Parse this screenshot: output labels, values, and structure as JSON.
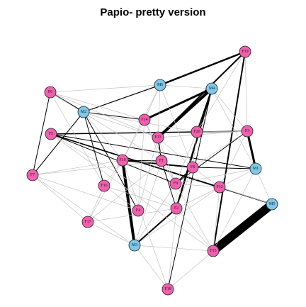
{
  "title": "Papio- pretty version",
  "colors": {
    "female": "#f25fae",
    "male": "#7ec8ea",
    "edge_strong": "#000000",
    "edge_weak": "#c4c4c4",
    "stroke": "#222222"
  },
  "nodes": [
    {
      "id": "F1",
      "label": "F1",
      "sex": "female"
    },
    {
      "id": "F2",
      "label": "F2",
      "sex": "female"
    },
    {
      "id": "F3",
      "label": "F3",
      "sex": "female"
    },
    {
      "id": "F4",
      "label": "F4",
      "sex": "female"
    },
    {
      "id": "F5",
      "label": "F5",
      "sex": "female"
    },
    {
      "id": "F6",
      "label": "F6",
      "sex": "female"
    },
    {
      "id": "F7",
      "label": "F7",
      "sex": "female"
    },
    {
      "id": "F8",
      "label": "F8",
      "sex": "female"
    },
    {
      "id": "F9",
      "label": "F9",
      "sex": "female"
    },
    {
      "id": "F10",
      "label": "F10",
      "sex": "female"
    },
    {
      "id": "F11",
      "label": "F11",
      "sex": "female"
    },
    {
      "id": "F12",
      "label": "F12",
      "sex": "female"
    },
    {
      "id": "F13",
      "label": "F13",
      "sex": "female"
    },
    {
      "id": "F14",
      "label": "F14",
      "sex": "female"
    },
    {
      "id": "F15",
      "label": "F15",
      "sex": "female"
    },
    {
      "id": "F16",
      "label": "F16",
      "sex": "female"
    },
    {
      "id": "F17",
      "label": "F17",
      "sex": "female"
    },
    {
      "id": "F18",
      "label": "F18",
      "sex": "female"
    },
    {
      "id": "F19",
      "label": "F19",
      "sex": "female"
    },
    {
      "id": "F20",
      "label": "F20",
      "sex": "female"
    },
    {
      "id": "M1",
      "label": "M1",
      "sex": "male"
    },
    {
      "id": "M2",
      "label": "M2",
      "sex": "male"
    },
    {
      "id": "M3",
      "label": "M3",
      "sex": "male"
    },
    {
      "id": "M4",
      "label": "M4",
      "sex": "male"
    },
    {
      "id": "M5",
      "label": "M5",
      "sex": "male"
    },
    {
      "id": "M6",
      "label": "M6",
      "sex": "male"
    }
  ],
  "edges": [
    {
      "s": "F15",
      "t": "M5",
      "w": 12
    },
    {
      "s": "M4",
      "t": "F11",
      "w": 6
    },
    {
      "s": "M4",
      "t": "F13",
      "w": 4
    },
    {
      "s": "M4",
      "t": "F14",
      "w": 3
    },
    {
      "s": "M4",
      "t": "F2",
      "w": 2.5
    },
    {
      "s": "M4",
      "t": "F20",
      "w": 1.5
    },
    {
      "s": "M4",
      "t": "F18",
      "w": 1
    },
    {
      "s": "M6",
      "t": "F19",
      "w": 2.5
    },
    {
      "s": "M6",
      "t": "M2",
      "w": 1.2
    },
    {
      "s": "F19",
      "t": "F13",
      "w": 2
    },
    {
      "s": "F19",
      "t": "F15",
      "w": 2
    },
    {
      "s": "F10",
      "t": "M3",
      "w": 4
    },
    {
      "s": "F11",
      "t": "M3",
      "w": 4
    },
    {
      "s": "F14",
      "t": "F11",
      "w": 2
    },
    {
      "s": "F13",
      "t": "F11",
      "w": 3
    },
    {
      "s": "F13",
      "t": "F1",
      "w": 1.5
    },
    {
      "s": "F10",
      "t": "F11",
      "w": 1.5
    },
    {
      "s": "F10",
      "t": "F8",
      "w": 2
    },
    {
      "s": "F11",
      "t": "F8",
      "w": 1.5
    },
    {
      "s": "F11",
      "t": "F9",
      "w": 1.5
    },
    {
      "s": "F8",
      "t": "F9",
      "w": 1.5
    },
    {
      "s": "F2",
      "t": "M3",
      "w": 2
    },
    {
      "s": "F11",
      "t": "F12",
      "w": 2
    },
    {
      "s": "F12",
      "t": "F5",
      "w": 1.5
    },
    {
      "s": "F5",
      "t": "F3",
      "w": 1.5
    },
    {
      "s": "F3",
      "t": "M1",
      "w": 3
    },
    {
      "s": "F5",
      "t": "M5",
      "w": 1.5
    },
    {
      "s": "M2",
      "t": "F6",
      "w": 1.5
    },
    {
      "s": "M2",
      "t": "F4",
      "w": 1
    },
    {
      "s": "M2",
      "t": "F7",
      "w": 1
    },
    {
      "s": "M2",
      "t": "F14",
      "w": 1
    },
    {
      "s": "M2",
      "t": "F16",
      "w": 1
    },
    {
      "s": "F6",
      "t": "F7",
      "w": 1
    },
    {
      "s": "F6",
      "t": "F16",
      "w": 0.8
    },
    {
      "s": "F4",
      "t": "F16",
      "w": 0.8
    },
    {
      "s": "F10",
      "t": "F1",
      "w": 1
    },
    {
      "s": "F8",
      "t": "M1",
      "w": 1
    },
    {
      "s": "F9",
      "t": "F3",
      "w": 1
    },
    {
      "s": "F9",
      "t": "F5",
      "w": 1
    },
    {
      "s": "M1",
      "t": "F5",
      "w": 1
    },
    {
      "s": "F1",
      "t": "F2",
      "w": 1
    },
    {
      "s": "F6",
      "t": "M6",
      "w": 0.5
    },
    {
      "s": "F6",
      "t": "F1",
      "w": 0.5
    },
    {
      "s": "F6",
      "t": "F13",
      "w": 0.5
    },
    {
      "s": "F4",
      "t": "F14",
      "w": 0.5
    },
    {
      "s": "F4",
      "t": "F13",
      "w": 0.5
    },
    {
      "s": "F7",
      "t": "F17",
      "w": 0.5
    },
    {
      "s": "F7",
      "t": "F10",
      "w": 0.5
    },
    {
      "s": "F7",
      "t": "M3",
      "w": 0.5
    },
    {
      "s": "M2",
      "t": "F13",
      "w": 0.5
    },
    {
      "s": "M2",
      "t": "F10",
      "w": 0.5
    },
    {
      "s": "M2",
      "t": "F20",
      "w": 0.5
    },
    {
      "s": "M6",
      "t": "F13",
      "w": 0.5
    },
    {
      "s": "M6",
      "t": "M4",
      "w": 0.5
    },
    {
      "s": "M6",
      "t": "F14",
      "w": 0.5
    },
    {
      "s": "F19",
      "t": "F3",
      "w": 0.5
    },
    {
      "s": "F19",
      "t": "F20",
      "w": 0.5
    },
    {
      "s": "M4",
      "t": "F3",
      "w": 0.5
    },
    {
      "s": "M4",
      "t": "M1",
      "w": 0.5
    },
    {
      "s": "F20",
      "t": "F3",
      "w": 0.5
    },
    {
      "s": "F20",
      "t": "F9",
      "w": 0.5
    },
    {
      "s": "F20",
      "t": "F8",
      "w": 0.5
    },
    {
      "s": "F3",
      "t": "F12",
      "w": 0.5
    },
    {
      "s": "F3",
      "t": "F8",
      "w": 0.5
    },
    {
      "s": "F9",
      "t": "M1",
      "w": 0.5
    },
    {
      "s": "F9",
      "t": "F12",
      "w": 0.5
    },
    {
      "s": "F12",
      "t": "M1",
      "w": 0.5
    },
    {
      "s": "F12",
      "t": "M3",
      "w": 0.5
    },
    {
      "s": "F12",
      "t": "F15",
      "w": 0.5
    },
    {
      "s": "F12",
      "t": "F2",
      "w": 0.5
    },
    {
      "s": "F15",
      "t": "F9",
      "w": 0.5
    },
    {
      "s": "F15",
      "t": "M1",
      "w": 0.5
    },
    {
      "s": "F15",
      "t": "F2",
      "w": 0.5
    },
    {
      "s": "F15",
      "t": "M3",
      "w": 0.5
    },
    {
      "s": "F15",
      "t": "F11",
      "w": 0.5
    },
    {
      "s": "M5",
      "t": "F12",
      "w": 0.5
    },
    {
      "s": "M5",
      "t": "M1",
      "w": 0.5
    },
    {
      "s": "M3",
      "t": "F18",
      "w": 0.5
    },
    {
      "s": "M3",
      "t": "F17",
      "w": 0.5
    },
    {
      "s": "M3",
      "t": "F9",
      "w": 0.5
    },
    {
      "s": "M3",
      "t": "F1",
      "w": 0.5
    },
    {
      "s": "F18",
      "t": "F2",
      "w": 0.5
    },
    {
      "s": "F18",
      "t": "F10",
      "w": 0.5
    },
    {
      "s": "F18",
      "t": "F15",
      "w": 0.5
    },
    {
      "s": "F17",
      "t": "F10",
      "w": 0.5
    },
    {
      "s": "F17",
      "t": "F16",
      "w": 0.5
    },
    {
      "s": "F17",
      "t": "F2",
      "w": 0.5
    },
    {
      "s": "F16",
      "t": "F10",
      "w": 0.5
    },
    {
      "s": "F16",
      "t": "F2",
      "w": 0.5
    },
    {
      "s": "F16",
      "t": "F11",
      "w": 0.5
    },
    {
      "s": "F14",
      "t": "F10",
      "w": 0.5
    },
    {
      "s": "F14",
      "t": "F9",
      "w": 0.5
    },
    {
      "s": "F14",
      "t": "F1",
      "w": 0.5
    },
    {
      "s": "F13",
      "t": "F8",
      "w": 0.5
    },
    {
      "s": "F13",
      "t": "F9",
      "w": 0.5
    },
    {
      "s": "F13",
      "t": "F3",
      "w": 0.5
    },
    {
      "s": "F1",
      "t": "F17",
      "w": 0.5
    },
    {
      "s": "F1",
      "t": "F11",
      "w": 0.5
    },
    {
      "s": "F1",
      "t": "F9",
      "w": 0.5
    },
    {
      "s": "F8",
      "t": "F12",
      "w": 0.5
    },
    {
      "s": "F8",
      "t": "F2",
      "w": 0.5
    },
    {
      "s": "F11",
      "t": "F5",
      "w": 0.5
    },
    {
      "s": "F2",
      "t": "F5",
      "w": 0.5
    },
    {
      "s": "F2",
      "t": "F9",
      "w": 0.5
    },
    {
      "s": "F5",
      "t": "F15",
      "w": 0.5
    },
    {
      "s": "F7",
      "t": "F4",
      "w": 0.5
    },
    {
      "s": "F7",
      "t": "F1",
      "w": 0.5
    },
    {
      "s": "F6",
      "t": "F14",
      "w": 0.5
    },
    {
      "s": "M6",
      "t": "F10",
      "w": 0.5
    },
    {
      "s": "M6",
      "t": "F8",
      "w": 0.5
    }
  ]
}
